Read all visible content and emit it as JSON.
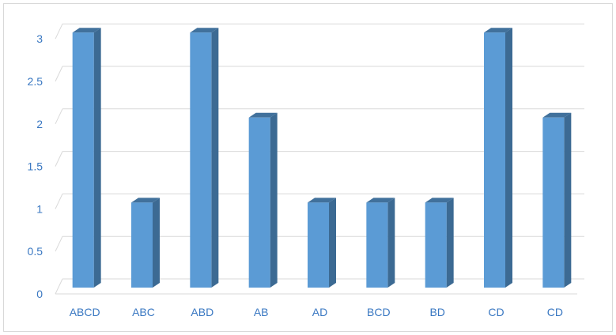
{
  "chart_data": {
    "type": "bar",
    "title": "",
    "xlabel": "",
    "ylabel": "",
    "categories": [
      "ABCD",
      "ABC",
      "ABD",
      "AB",
      "AD",
      "BCD",
      "BD",
      "CD",
      "CD"
    ],
    "values": [
      3,
      1,
      3,
      2,
      1,
      1,
      1,
      3,
      2
    ],
    "ylim": [
      0,
      3
    ],
    "yticks": [
      "0",
      "0.5",
      "1",
      "1.5",
      "2",
      "2.5",
      "3"
    ],
    "grid": true,
    "legend": "none",
    "style": "3d-column",
    "colors": {
      "bar_front": "#5b9bd5",
      "bar_side": "#3c6a93",
      "bar_top": "#41719c",
      "tick_text": "#3a78c2",
      "grid": "#d9d9d9"
    }
  }
}
